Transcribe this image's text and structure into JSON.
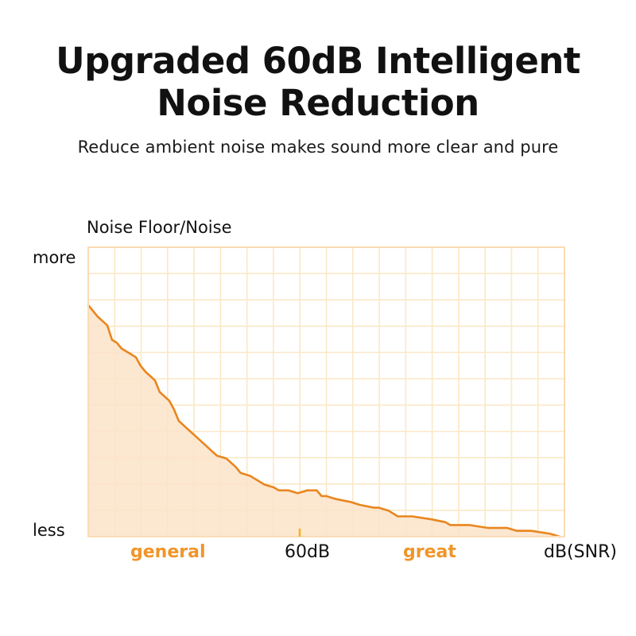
{
  "header": {
    "title_line1": "Upgraded 60dB Intelligent",
    "title_line2": "Noise Reduction",
    "subtitle": "Reduce ambient noise makes sound more clear and pure"
  },
  "colors": {
    "accent": "#f0952a",
    "line": "#e8861e",
    "fill": "#fbe3c9",
    "grid": "#fbe8c6",
    "text": "#111111"
  },
  "chart_data": {
    "type": "area",
    "title": "",
    "ylabel": "Noise Floor/Noise",
    "xlabel": "dB(SNR)",
    "y_tick_labels": [
      "more",
      "less"
    ],
    "x_tick_labels": [
      "general",
      "60dB",
      "great",
      "dB(SNR)"
    ],
    "grid": true,
    "grid_columns": 18,
    "grid_rows": 11,
    "marker": {
      "label": "60dB",
      "x_fraction": 0.444
    },
    "x": [
      0.0,
      0.02,
      0.04,
      0.05,
      0.06,
      0.07,
      0.08,
      0.1,
      0.11,
      0.12,
      0.14,
      0.15,
      0.17,
      0.18,
      0.19,
      0.21,
      0.23,
      0.25,
      0.27,
      0.29,
      0.31,
      0.32,
      0.34,
      0.35,
      0.37,
      0.39,
      0.4,
      0.42,
      0.44,
      0.46,
      0.48,
      0.49,
      0.5,
      0.52,
      0.55,
      0.57,
      0.6,
      0.61,
      0.63,
      0.65,
      0.68,
      0.72,
      0.75,
      0.76,
      0.8,
      0.84,
      0.85,
      0.88,
      0.9,
      0.93,
      0.97,
      0.99
    ],
    "values": [
      80,
      76,
      73,
      68,
      67,
      65,
      64,
      62,
      59,
      57,
      54,
      50,
      47,
      44,
      40,
      37,
      34,
      31,
      28,
      27,
      24,
      22,
      21,
      20,
      18,
      17,
      16,
      16,
      15,
      16,
      16,
      14,
      14,
      13,
      12,
      11,
      10,
      10,
      9,
      7,
      7,
      6,
      5,
      4,
      4,
      3,
      3,
      3,
      2,
      2,
      1,
      0
    ],
    "ylim": [
      0,
      100
    ],
    "xlim": [
      0,
      1
    ]
  }
}
